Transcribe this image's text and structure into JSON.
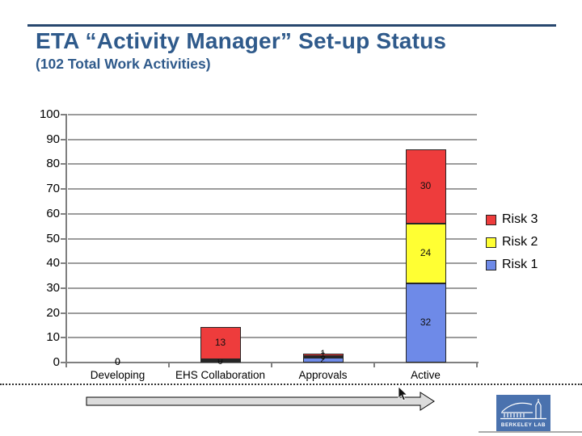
{
  "slide": {
    "title": "ETA “Activity Manager” Set-up Status",
    "subtitle": "(102 Total Work Activities)",
    "title_color": "#2F5A8B",
    "rule_color": "#27476E"
  },
  "chart_data": {
    "type": "bar",
    "stacked": true,
    "title": "ETA “Activity Manager” Set-up Status (102 Total Work Activities)",
    "categories": [
      "Developing",
      "EHS Collaboration",
      "Approvals",
      "Active"
    ],
    "series": [
      {
        "name": "Risk 1",
        "color": "#6E8AE8",
        "values": [
          0,
          0,
          2,
          32
        ]
      },
      {
        "name": "Risk 2",
        "color": "#FFFF33",
        "values": [
          0,
          0,
          0,
          24
        ]
      },
      {
        "name": "Risk 3",
        "color": "#EE3C3C",
        "values": [
          0,
          13,
          1,
          30
        ]
      }
    ],
    "category_totals": [
      0,
      13,
      3,
      86
    ],
    "ylim": [
      0,
      100
    ],
    "ytick_step": 10,
    "grid": true,
    "data_labels": true,
    "legend_position": "right",
    "legend_order": [
      "Risk 3",
      "Risk 2",
      "Risk 1"
    ],
    "xlabel": "",
    "ylabel": ""
  },
  "decorations": {
    "arrow_fill": "#DCDCDC",
    "gridline_color": "#9C9C9C",
    "axis_color": "#808080"
  },
  "logo": {
    "text": "BERKELEY LAB",
    "bg_color": "#4A72AE"
  }
}
